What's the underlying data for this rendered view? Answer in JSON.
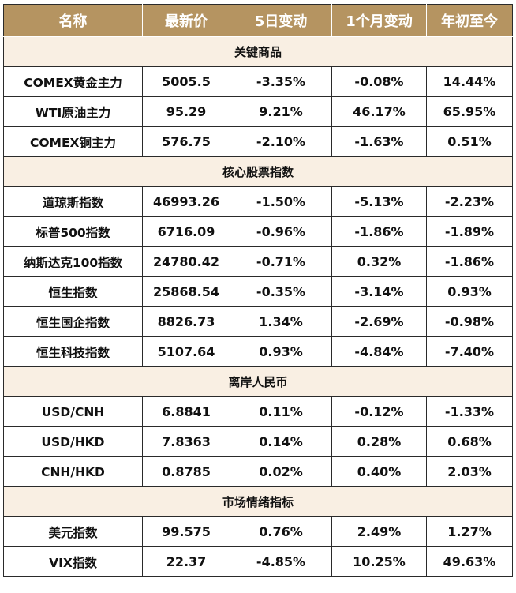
{
  "headers": [
    "名称",
    "最新价",
    "5日变动",
    "1个月变动",
    "年初至今"
  ],
  "sections": [
    {
      "title": "关键商品",
      "rows": [
        {
          "name": "COMEX黄金主力",
          "price": "5005.5",
          "d5": "-3.35%",
          "m1": "-0.08%",
          "ytd": "14.44%"
        },
        {
          "name": "WTI原油主力",
          "price": "95.29",
          "d5": "9.21%",
          "m1": "46.17%",
          "ytd": "65.95%"
        },
        {
          "name": "COMEX铜主力",
          "price": "576.75",
          "d5": "-2.10%",
          "m1": "-1.63%",
          "ytd": "0.51%"
        }
      ]
    },
    {
      "title": "核心股票指数",
      "rows": [
        {
          "name": "道琼斯指数",
          "price": "46993.26",
          "d5": "-1.50%",
          "m1": "-5.13%",
          "ytd": "-2.23%"
        },
        {
          "name": "标普500指数",
          "price": "6716.09",
          "d5": "-0.96%",
          "m1": "-1.86%",
          "ytd": "-1.89%"
        },
        {
          "name": "纳斯达克100指数",
          "price": "24780.42",
          "d5": "-0.71%",
          "m1": "0.32%",
          "ytd": "-1.86%"
        },
        {
          "name": "恒生指数",
          "price": "25868.54",
          "d5": "-0.35%",
          "m1": "-3.14%",
          "ytd": "0.93%"
        },
        {
          "name": "恒生国企指数",
          "price": "8826.73",
          "d5": "1.34%",
          "m1": "-2.69%",
          "ytd": "-0.98%"
        },
        {
          "name": "恒生科技指数",
          "price": "5107.64",
          "d5": "0.93%",
          "m1": "-4.84%",
          "ytd": "-7.40%"
        }
      ]
    },
    {
      "title": "离岸人民币",
      "rows": [
        {
          "name": "USD/CNH",
          "price": "6.8841",
          "d5": "0.11%",
          "m1": "-0.12%",
          "ytd": "-1.33%"
        },
        {
          "name": "USD/HKD",
          "price": "7.8363",
          "d5": "0.14%",
          "m1": "0.28%",
          "ytd": "0.68%"
        },
        {
          "name": "CNH/HKD",
          "price": "0.8785",
          "d5": "0.02%",
          "m1": "0.40%",
          "ytd": "2.03%"
        }
      ]
    },
    {
      "title": "市场情绪指标",
      "rows": [
        {
          "name": "美元指数",
          "price": "99.575",
          "d5": "0.76%",
          "m1": "2.49%",
          "ytd": "1.27%"
        },
        {
          "name": "VIX指数",
          "price": "22.37",
          "d5": "-4.85%",
          "m1": "10.25%",
          "ytd": "49.63%"
        }
      ]
    }
  ],
  "colors": {
    "header_bg": "#b59461",
    "section_bg": "#f9efe3",
    "negative": "#e8121a",
    "positive": "#17a63c"
  }
}
